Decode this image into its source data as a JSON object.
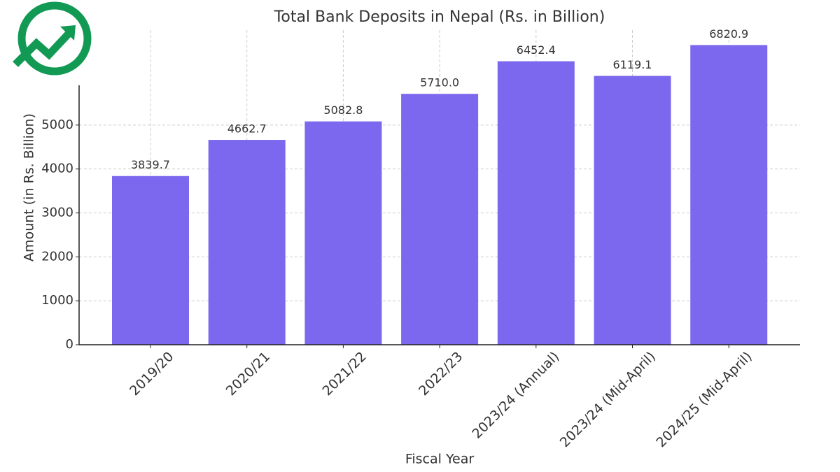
{
  "chart_data": {
    "type": "bar",
    "title": "Total Bank Deposits in Nepal (Rs. in Billion)",
    "x_label": "Fiscal Year",
    "y_label": "Amount (in Rs. Billion)",
    "categories": [
      "2019/20",
      "2020/21",
      "2021/22",
      "2022/23",
      "2023/24 (Annual)",
      "2023/24 (Mid-April)",
      "2024/25 (Mid-April)"
    ],
    "values": [
      3839.7,
      4662.7,
      5082.8,
      5710.0,
      6452.4,
      6119.1,
      6820.9
    ],
    "value_labels": [
      "3839.7",
      "4662.7",
      "5082.8",
      "5710.0",
      "6452.4",
      "6119.1",
      "6820.9"
    ],
    "color": "#7b68ee",
    "ylim": [
      0,
      7162
    ],
    "yticks": [
      0,
      1000,
      2000,
      3000,
      4000,
      5000
    ],
    "grid": true
  }
}
